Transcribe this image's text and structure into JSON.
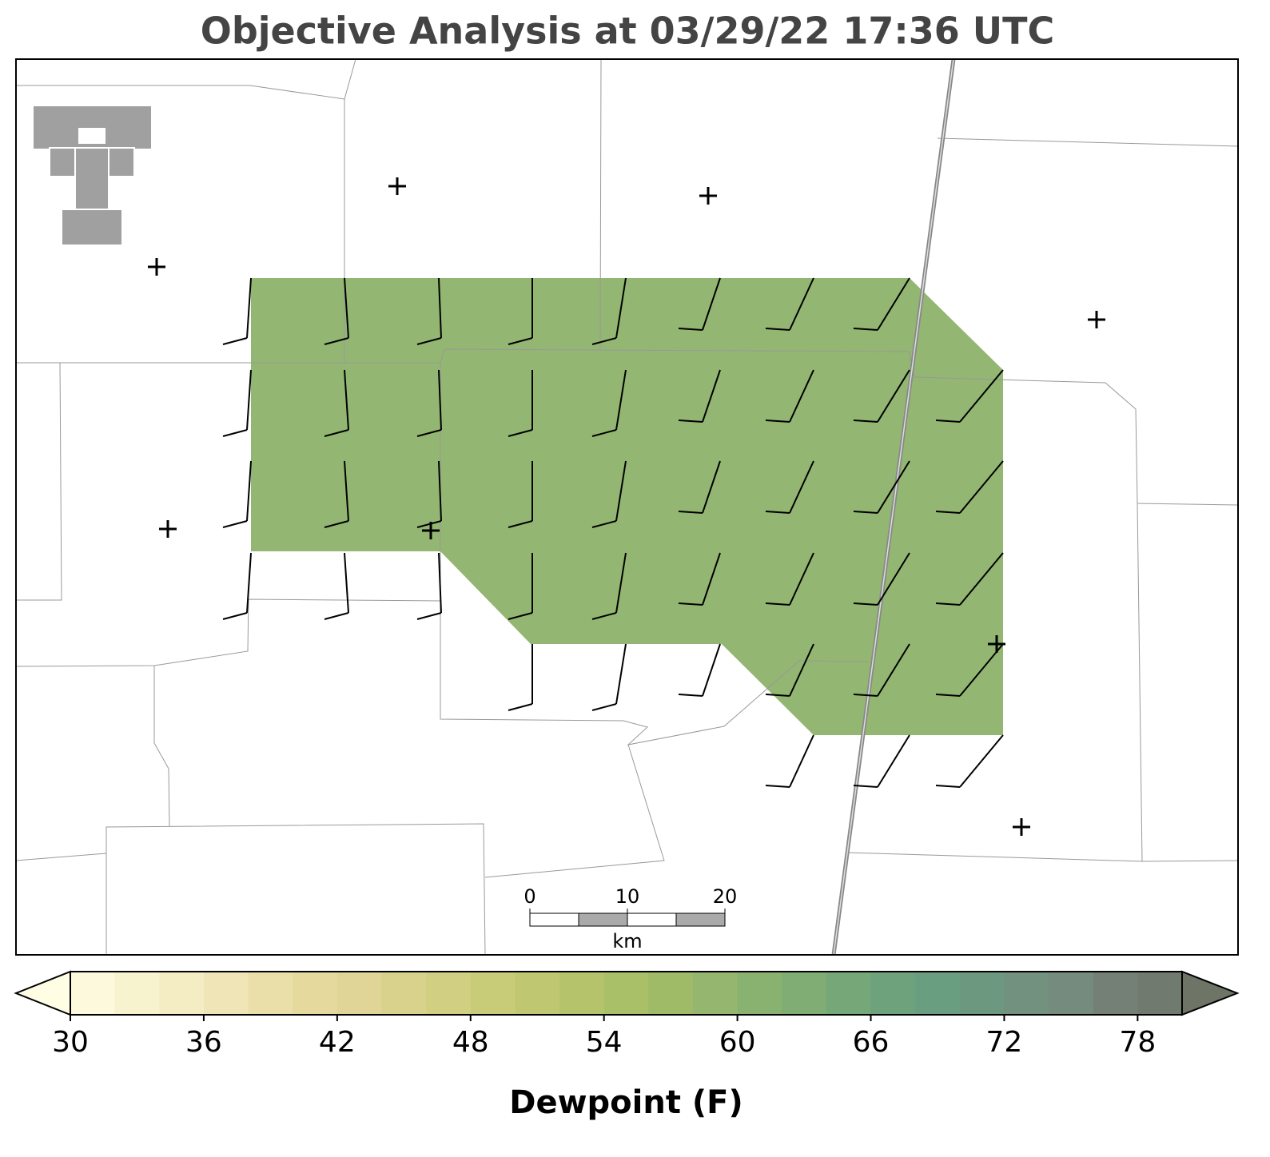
{
  "title": "Objective Analysis at 03/29/22 17:36 UTC",
  "scale_bar": {
    "ticks": [
      0,
      10,
      20
    ],
    "unit": "km"
  },
  "colorbar": {
    "label": "Dewpoint (F)",
    "range": [
      30,
      80
    ],
    "ticks": [
      30,
      36,
      42,
      48,
      54,
      60,
      66,
      72,
      78
    ],
    "under_color": "#fffde3",
    "over_color": "#6e7466",
    "colors": [
      "#fcf9dc",
      "#f8f3cf",
      "#f4edc4",
      "#efe5b6",
      "#eadfa9",
      "#e5d99e",
      "#e0d596",
      "#d9d28c",
      "#d1cf82",
      "#c8cc78",
      "#bfc870",
      "#b5c46a",
      "#aac068",
      "#9fbb68",
      "#94b66e",
      "#89b170",
      "#7fad74",
      "#76a778",
      "#6da27c",
      "#6a9e80",
      "#6c9880",
      "#72917f",
      "#748b7d",
      "#747f76",
      "#717a6f"
    ]
  }
}
